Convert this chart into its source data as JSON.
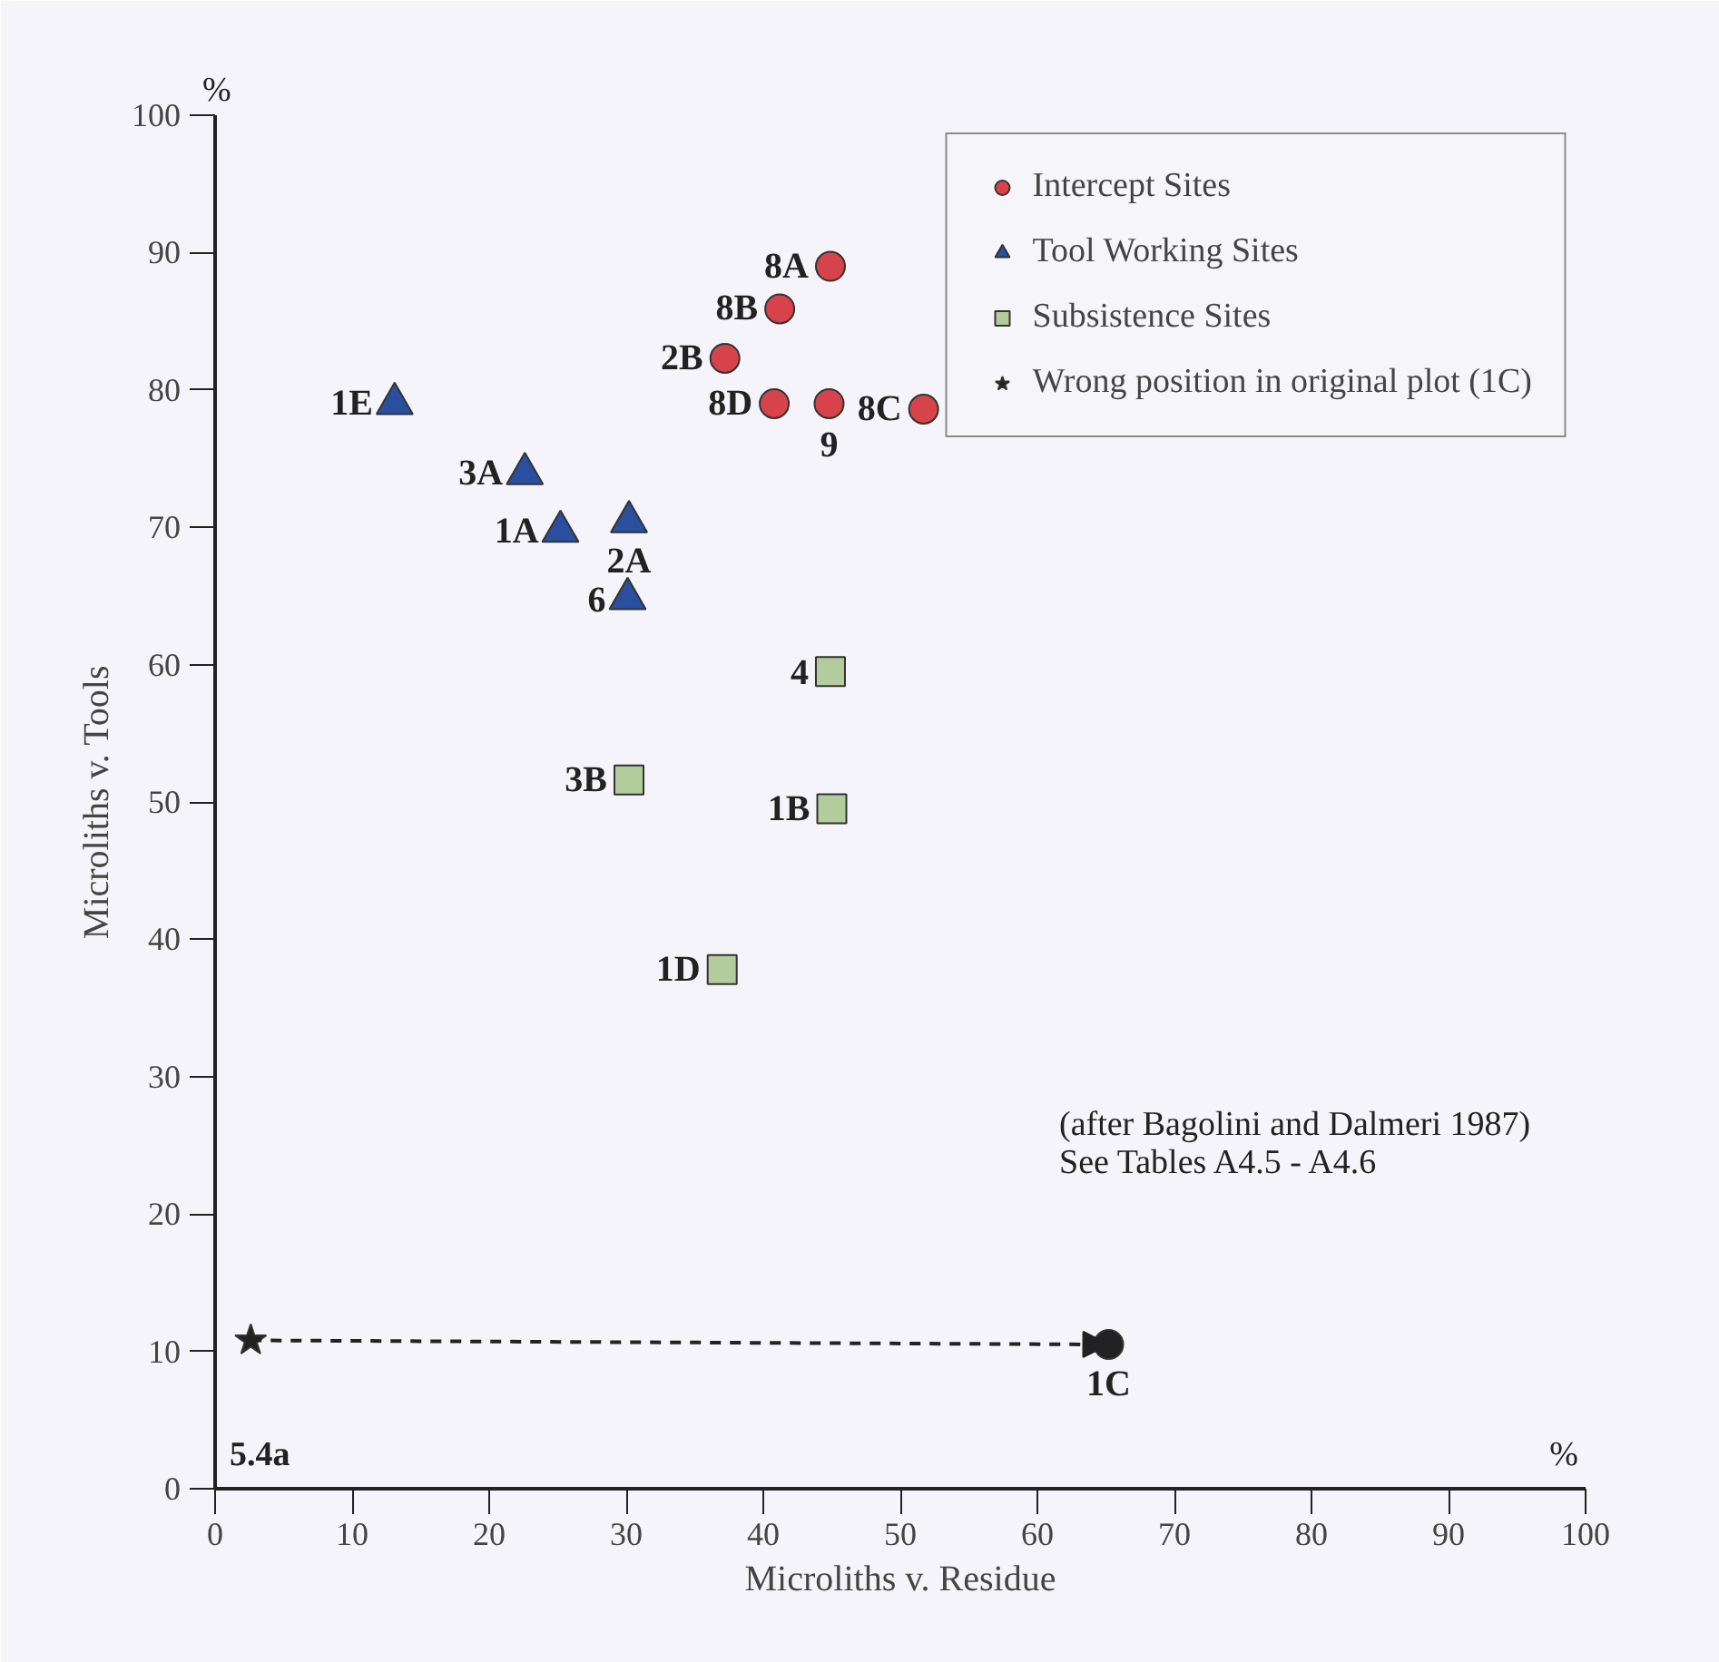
{
  "chart_data": {
    "type": "scatter",
    "xlabel": "Microliths v. Residue",
    "ylabel": "Microliths v. Tools",
    "xlim": [
      0,
      100
    ],
    "ylim": [
      0,
      100
    ],
    "xticks": [
      0,
      10,
      20,
      30,
      40,
      50,
      60,
      70,
      80,
      90,
      100
    ],
    "yticks": [
      0,
      10,
      20,
      30,
      40,
      50,
      60,
      70,
      80,
      90,
      100
    ],
    "grid": false,
    "legend": "top right",
    "series": [
      {
        "name": "Intercept Sites",
        "color": "#d6434a",
        "marker": "circle",
        "x": [
          44.9,
          41.2,
          37.2,
          40.8,
          44.8,
          51.7
        ],
        "values": [
          89.0,
          85.9,
          82.3,
          79.0,
          79.0,
          78.6
        ]
      },
      {
        "name": "Tool Working Sites",
        "color": "#2a4f9e",
        "marker": "triangle",
        "x": [
          13.1,
          22.6,
          25.2,
          30.2,
          30.1
        ],
        "values": [
          79.0,
          73.9,
          69.7,
          70.4,
          64.8
        ]
      },
      {
        "name": "Subsistence Sites",
        "color": "#b3cc9c",
        "marker": "square",
        "x": [
          44.9,
          30.2,
          45.0,
          37.0
        ],
        "values": [
          59.5,
          51.6,
          49.5,
          37.8
        ]
      },
      {
        "name": "Wrong position in original plot (1C)",
        "color": "#222222",
        "marker": "star",
        "x": [
          2.6
        ],
        "values": [
          10.8
        ]
      },
      {
        "color": "#222222",
        "marker": "circle",
        "x": [
          65.2
        ],
        "values": [
          10.5
        ]
      }
    ],
    "annotations": [
      {
        "text": "8A",
        "x": 44.9,
        "y": 89.0
      },
      {
        "text": "8B",
        "x": 41.2,
        "y": 85.9
      },
      {
        "text": "2B",
        "x": 37.2,
        "y": 82.3
      },
      {
        "text": "8D",
        "x": 40.8,
        "y": 79.0
      },
      {
        "text": "9",
        "x": 44.8,
        "y": 79.0
      },
      {
        "text": "8C",
        "x": 51.7,
        "y": 78.6
      },
      {
        "text": "1E",
        "x": 13.1,
        "y": 79.0
      },
      {
        "text": "3A",
        "x": 22.6,
        "y": 73.9
      },
      {
        "text": "1A",
        "x": 25.2,
        "y": 69.7
      },
      {
        "text": "2A",
        "x": 30.2,
        "y": 70.4
      },
      {
        "text": "6",
        "x": 30.1,
        "y": 64.8
      },
      {
        "text": "4",
        "x": 44.9,
        "y": 59.5
      },
      {
        "text": "3B",
        "x": 30.2,
        "y": 51.6
      },
      {
        "text": "1B",
        "x": 45.0,
        "y": 49.5
      },
      {
        "text": "1D",
        "x": 37.0,
        "y": 37.8
      },
      {
        "text": "1C",
        "x": 65.2,
        "y": 10.5
      },
      "%",
      "%",
      "(after Bagolini and Dalmeri 1987)",
      "See Tables A4.5 - A4.6",
      "5.4a"
    ]
  }
}
